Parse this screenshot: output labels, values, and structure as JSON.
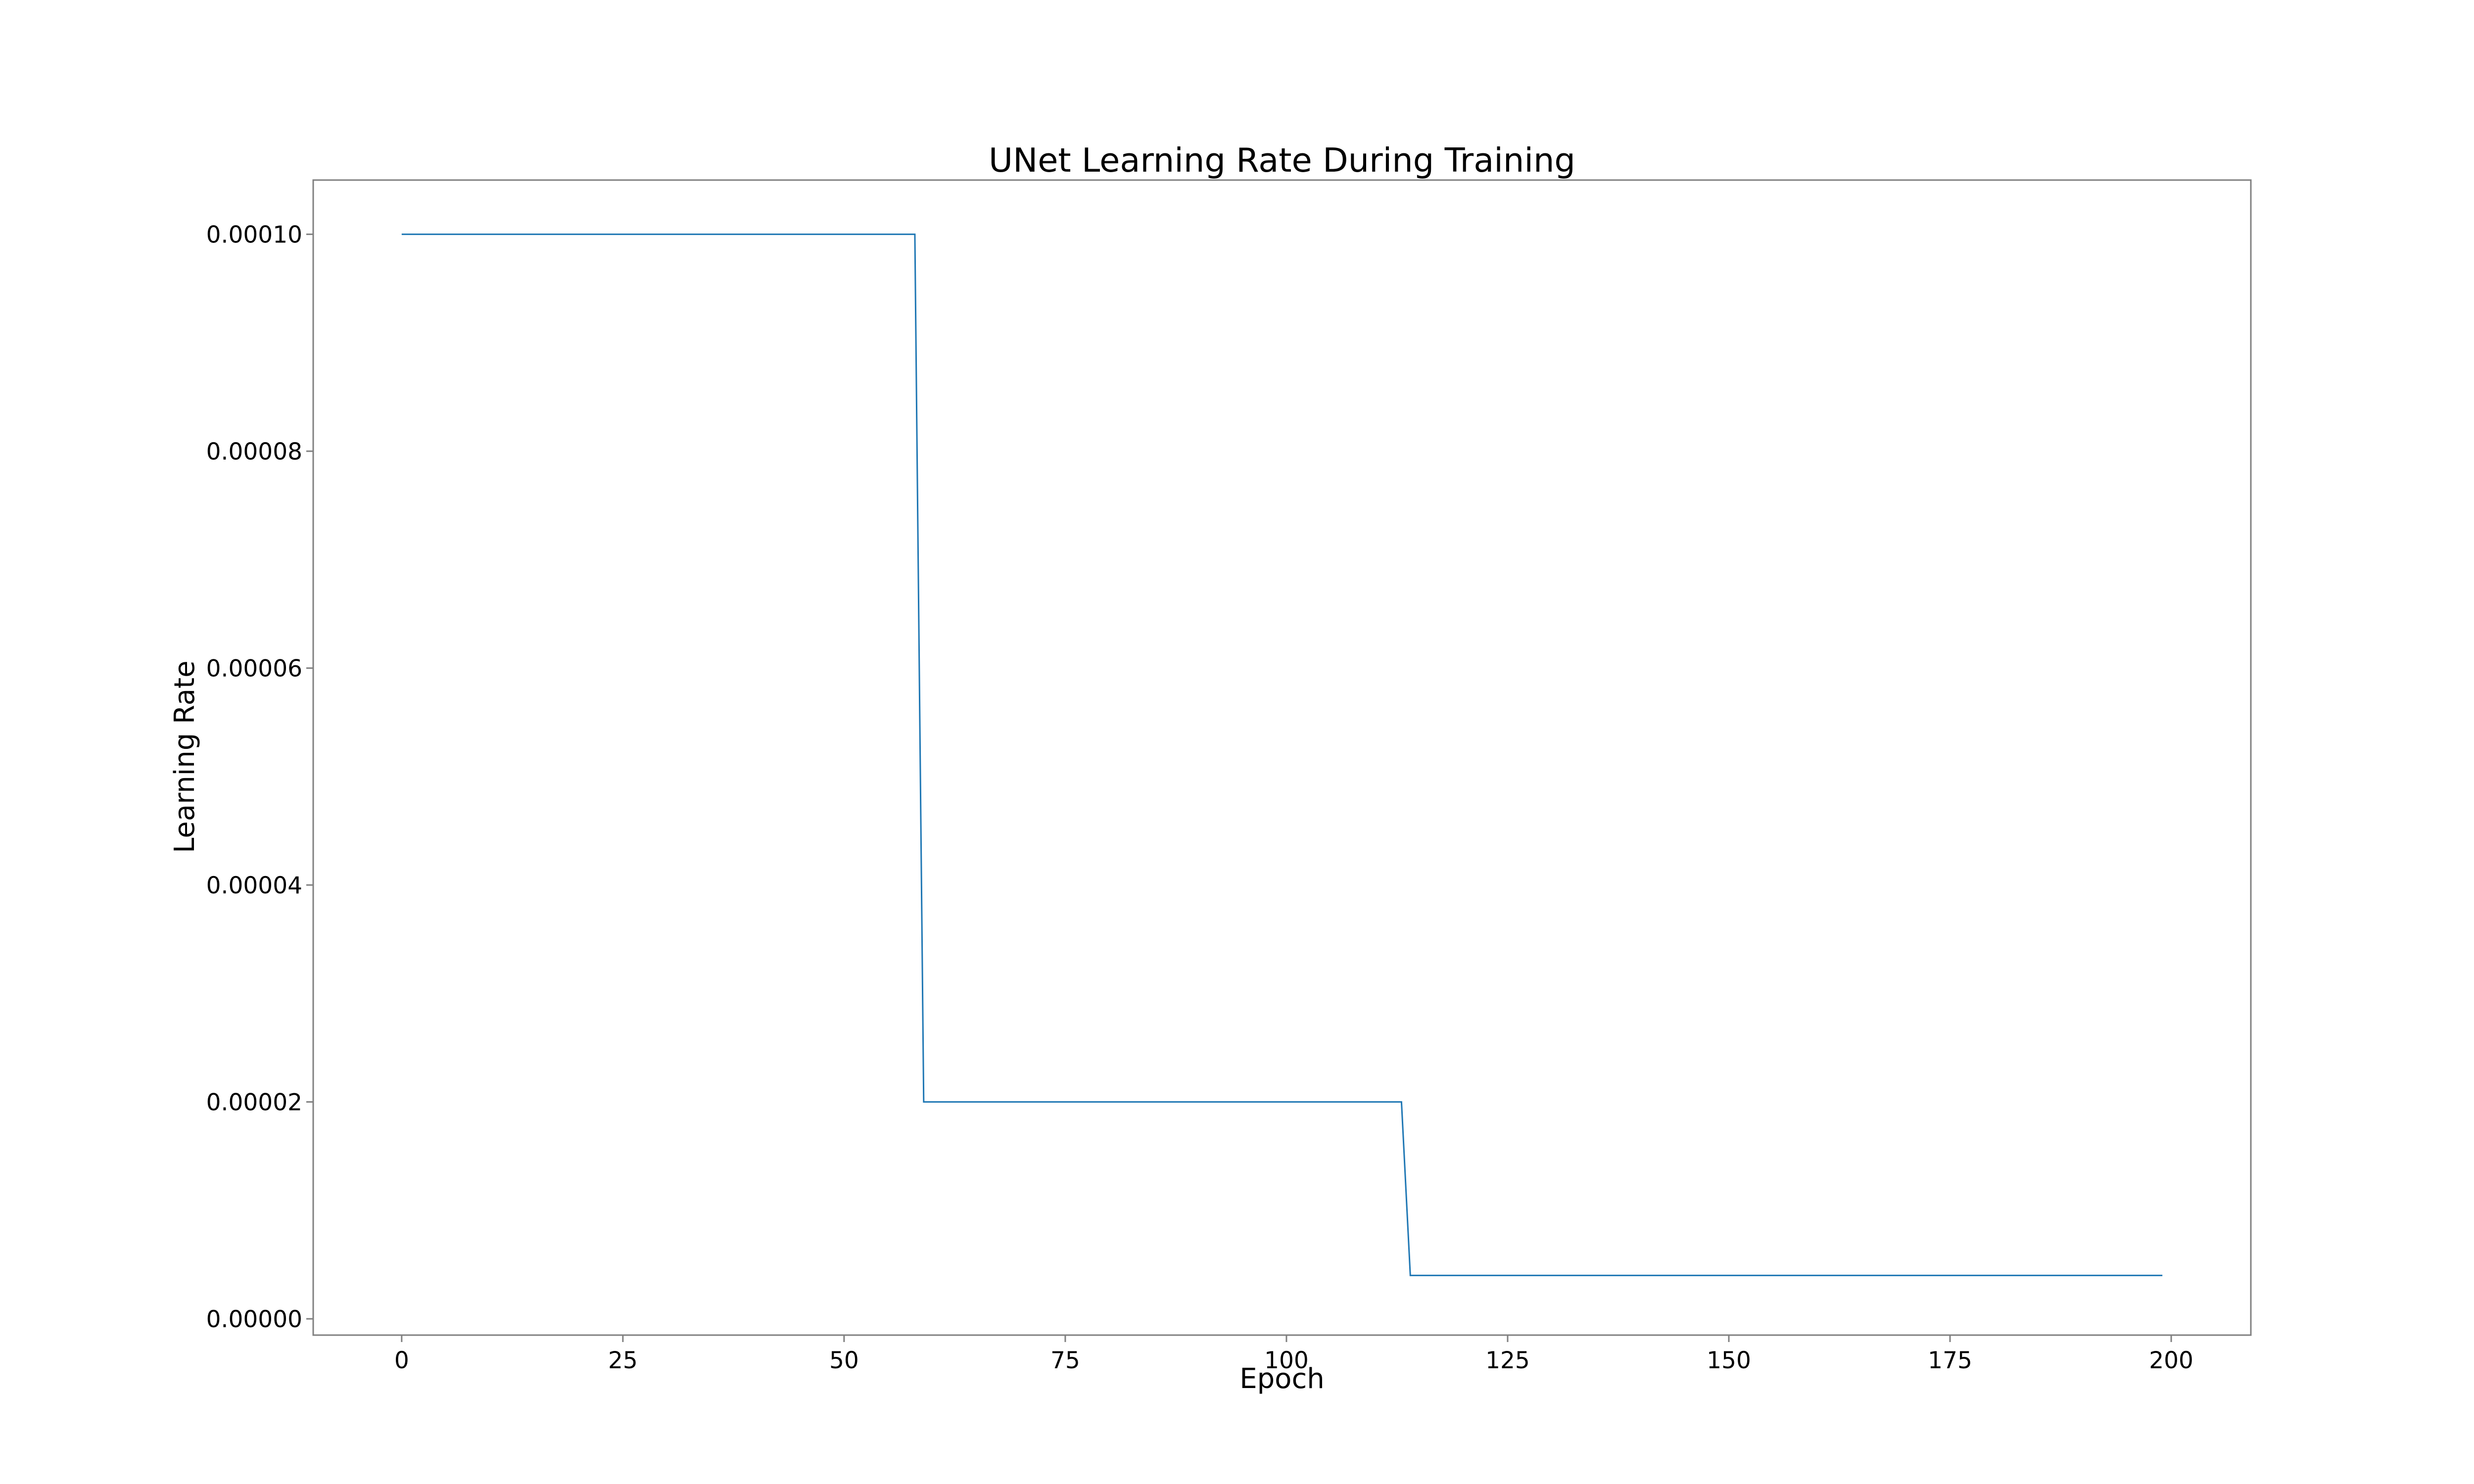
{
  "chart_data": {
    "type": "line",
    "title": "UNet Learning Rate During Training",
    "xlabel": "Epoch",
    "ylabel": "Learning Rate",
    "xlim": [
      -10,
      209
    ],
    "ylim": [
      -1.5e-06,
      0.000105
    ],
    "xticks": [
      0,
      25,
      50,
      75,
      100,
      125,
      150,
      175,
      200
    ],
    "xtick_labels": [
      "0",
      "25",
      "50",
      "75",
      "100",
      "125",
      "150",
      "175",
      "200"
    ],
    "yticks": [
      0.0,
      2e-05,
      4e-05,
      6e-05,
      8e-05,
      0.0001
    ],
    "ytick_labels": [
      "0.00000",
      "0.00002",
      "0.00004",
      "0.00006",
      "0.00008",
      "0.00010"
    ],
    "grid": false,
    "series": [
      {
        "color": "#1f77b4",
        "x": [
          0,
          58,
          59,
          113,
          114,
          199
        ],
        "y": [
          0.0001,
          0.0001,
          2e-05,
          2e-05,
          4e-06,
          4e-06
        ]
      }
    ]
  }
}
